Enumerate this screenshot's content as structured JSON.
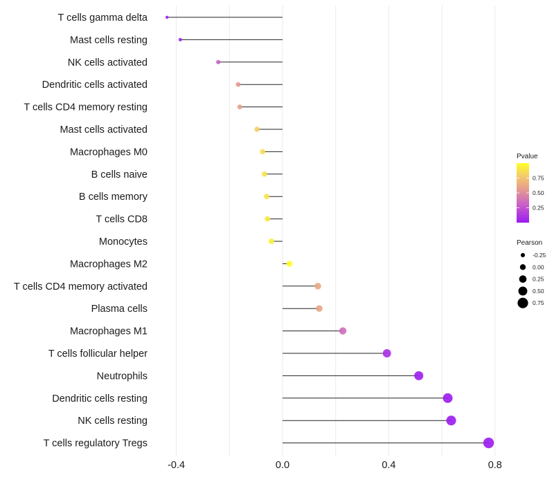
{
  "chart_data": {
    "type": "scatter",
    "subtype": "lollipop",
    "title": "",
    "xlabel": "",
    "ylabel": "",
    "xlim": [
      -0.45,
      0.82
    ],
    "x_ticks": [
      -0.4,
      0.0,
      0.4,
      0.8
    ],
    "x_tick_labels": [
      "-0.4",
      "0.0",
      "0.4",
      "0.8"
    ],
    "grid": true,
    "categories": [
      "T cells gamma delta",
      "Mast cells resting",
      "NK cells activated",
      "Dendritic cells activated",
      "T cells CD4 memory resting",
      "Mast cells activated",
      "Macrophages M0",
      "B cells naive",
      "B cells memory",
      "T cells CD8",
      "Monocytes",
      "Macrophages M2",
      "T cells CD4 memory activated",
      "Plasma cells",
      "Macrophages M1",
      "T cells follicular helper",
      "Neutrophils",
      "Dendritic cells resting",
      "NK cells resting",
      "T cells regulatory  Tregs"
    ],
    "pearson": [
      -0.435,
      -0.385,
      -0.242,
      -0.167,
      -0.161,
      -0.096,
      -0.075,
      -0.068,
      -0.06,
      -0.057,
      -0.042,
      0.026,
      0.133,
      0.138,
      0.227,
      0.393,
      0.513,
      0.622,
      0.635,
      0.776
    ],
    "pvalue": [
      0.02,
      0.04,
      0.3,
      0.55,
      0.57,
      0.8,
      0.86,
      0.88,
      0.89,
      0.9,
      0.94,
      0.99,
      0.62,
      0.61,
      0.35,
      0.08,
      0.01,
      0.001,
      0.001,
      0.0001
    ],
    "color_legend": {
      "title": "Pvalue",
      "ticks": [
        0.25,
        0.5,
        0.75
      ],
      "tick_labels": [
        "0.25",
        "0.50",
        "0.75"
      ],
      "range": [
        0,
        1
      ],
      "low_color": "#9A1BF0",
      "mid_color": "#D87CA8",
      "high_color": "#FFFF22",
      "placement": "right"
    },
    "size_legend": {
      "title": "Pearson",
      "values": [
        -0.25,
        0.0,
        0.25,
        0.5,
        0.75
      ],
      "labels": [
        "-0.25",
        "0.00",
        "0.25",
        "0.50",
        "0.75"
      ],
      "placement": "right"
    }
  }
}
